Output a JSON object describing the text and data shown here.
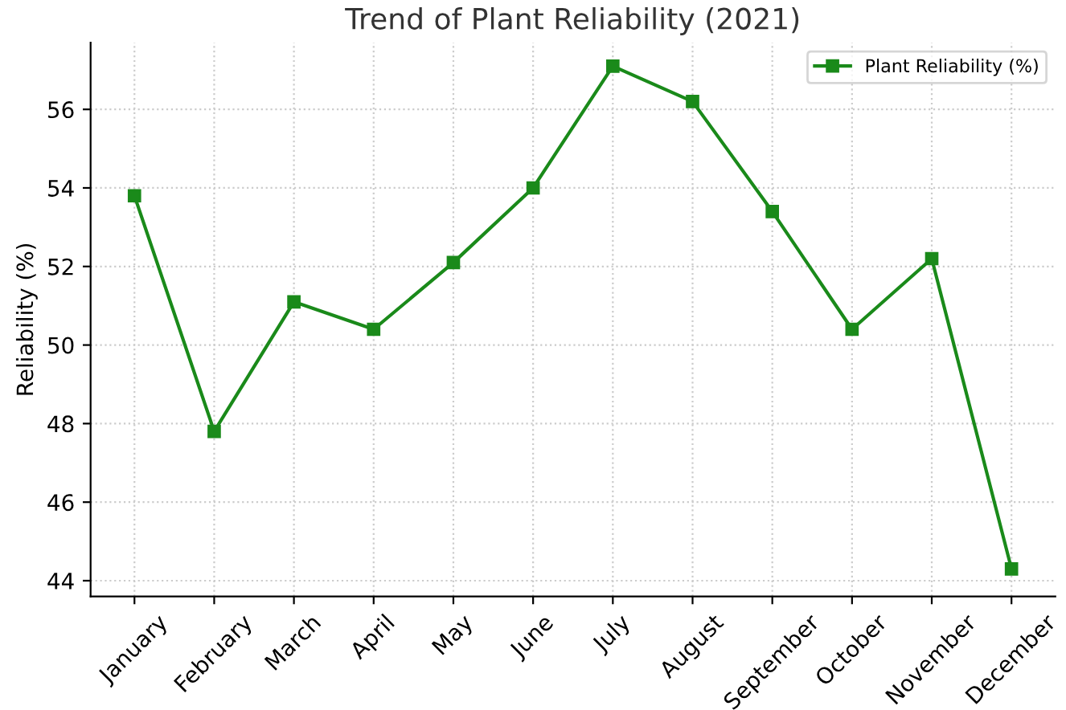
{
  "chart_data": {
    "type": "line",
    "title": "Trend of Plant Reliability (2021)",
    "ylabel": "Reliability (%)",
    "categories": [
      "January",
      "February",
      "March",
      "April",
      "May",
      "June",
      "July",
      "August",
      "September",
      "October",
      "November",
      "December"
    ],
    "series": [
      {
        "name": "Plant Reliability (%)",
        "color": "#1a8a1a",
        "values": [
          53.8,
          47.8,
          51.1,
          50.4,
          52.1,
          54.0,
          57.1,
          56.2,
          53.4,
          50.4,
          52.2,
          44.3
        ]
      }
    ],
    "ylim": [
      43.6,
      57.7
    ],
    "yticks": [
      44,
      46,
      48,
      50,
      52,
      54,
      56
    ],
    "grid": true,
    "legend": "top right",
    "marker": "square",
    "line_style": "solid"
  }
}
